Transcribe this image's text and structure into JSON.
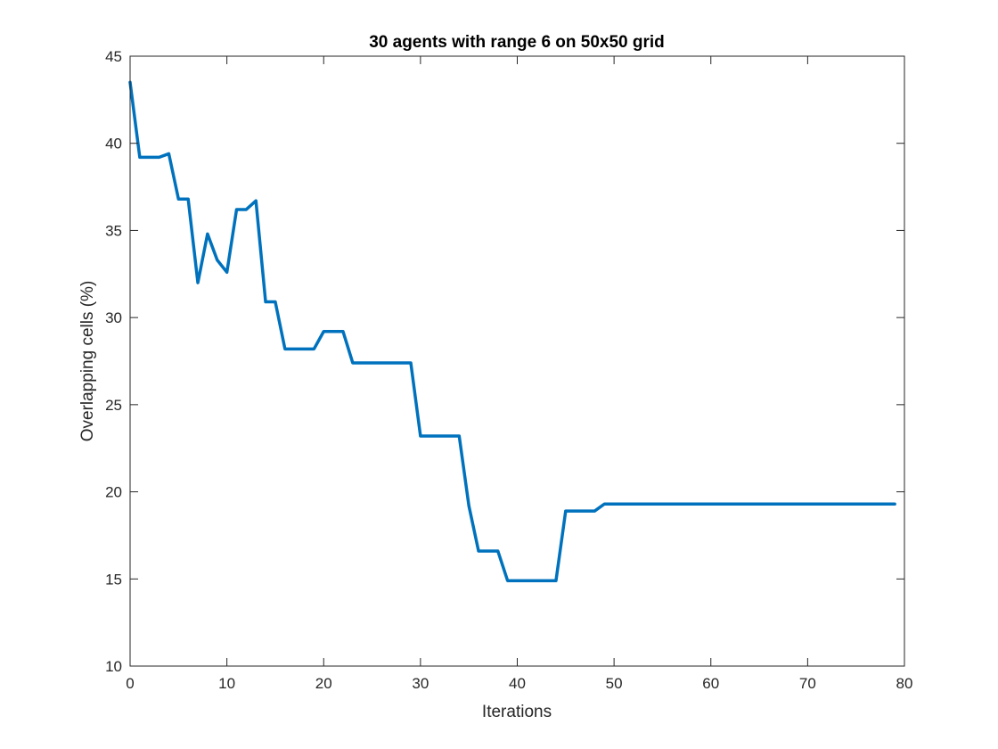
{
  "chart_data": {
    "type": "line",
    "title": "30 agents with range 6 on 50x50 grid",
    "xlabel": "Iterations",
    "ylabel": "Overlapping cells (%)",
    "xlim": [
      0,
      80
    ],
    "ylim": [
      10,
      45
    ],
    "xticks": [
      0,
      10,
      20,
      30,
      40,
      50,
      60,
      70,
      80
    ],
    "yticks": [
      10,
      15,
      20,
      25,
      30,
      35,
      40,
      45
    ],
    "grid": false,
    "box": true,
    "series": [
      {
        "color": "#0072BD",
        "x": [
          0,
          1,
          2,
          3,
          4,
          5,
          6,
          7,
          8,
          9,
          10,
          11,
          12,
          13,
          14,
          15,
          16,
          17,
          18,
          19,
          20,
          21,
          22,
          23,
          24,
          25,
          26,
          27,
          28,
          29,
          30,
          31,
          32,
          33,
          34,
          35,
          36,
          37,
          38,
          39,
          40,
          41,
          42,
          43,
          44,
          45,
          46,
          47,
          48,
          49,
          50,
          51,
          52,
          53,
          54,
          55,
          56,
          57,
          58,
          59,
          60,
          61,
          62,
          63,
          64,
          65,
          66,
          67,
          68,
          69,
          70,
          71,
          72,
          73,
          74,
          75,
          76,
          77,
          78,
          79
        ],
        "y": [
          43.5,
          39.2,
          39.2,
          39.2,
          39.4,
          36.8,
          36.8,
          32.0,
          34.8,
          33.3,
          32.6,
          36.2,
          36.2,
          36.7,
          30.9,
          30.9,
          28.2,
          28.2,
          28.2,
          28.2,
          29.2,
          29.2,
          29.2,
          27.4,
          27.4,
          27.4,
          27.4,
          27.4,
          27.4,
          27.4,
          23.2,
          23.2,
          23.2,
          23.2,
          23.2,
          19.2,
          16.6,
          16.6,
          16.6,
          14.9,
          14.9,
          14.9,
          14.9,
          14.9,
          14.9,
          18.9,
          18.9,
          18.9,
          18.9,
          19.3,
          19.3,
          19.3,
          19.3,
          19.3,
          19.3,
          19.3,
          19.3,
          19.3,
          19.3,
          19.3,
          19.3,
          19.3,
          19.3,
          19.3,
          19.3,
          19.3,
          19.3,
          19.3,
          19.3,
          19.3,
          19.3,
          19.3,
          19.3,
          19.3,
          19.3,
          19.3,
          19.3,
          19.3,
          19.3,
          19.3
        ]
      }
    ]
  }
}
